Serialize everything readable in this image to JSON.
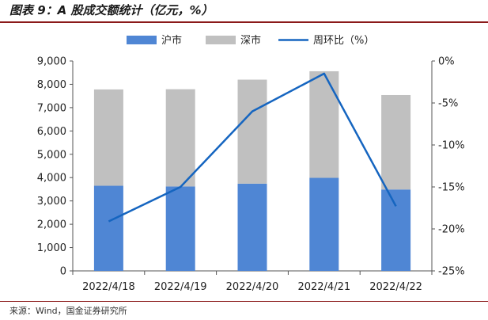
{
  "title": "图表 9：A 股成交额统计（亿元，%）",
  "source": "来源：Wind，国金证券研究所",
  "chart_data": {
    "type": "bar",
    "stacked": true,
    "categories": [
      "2022/4/18",
      "2022/4/19",
      "2022/4/20",
      "2022/4/21",
      "2022/4/22"
    ],
    "series": [
      {
        "name": "沪市",
        "type": "bar",
        "axis": "left",
        "color": "#4f86d4",
        "values": [
          3650,
          3620,
          3740,
          3990,
          3490
        ]
      },
      {
        "name": "深市",
        "type": "bar",
        "axis": "left",
        "color": "#c0c0c0",
        "values": [
          4130,
          4170,
          4460,
          4570,
          4050
        ]
      },
      {
        "name": "周环比（%）",
        "type": "line",
        "axis": "right",
        "color": "#1565c0",
        "values": [
          -19.1,
          -15.0,
          -6.0,
          -1.5,
          -17.3
        ]
      }
    ],
    "y_left": {
      "min": 0,
      "max": 9000,
      "step": 1000,
      "tick_labels": [
        "0",
        "1,000",
        "2,000",
        "3,000",
        "4,000",
        "5,000",
        "6,000",
        "7,000",
        "8,000",
        "9,000"
      ]
    },
    "y_right": {
      "min": -25,
      "max": 0,
      "step": 5,
      "tick_labels": [
        "-25%",
        "-20%",
        "-15%",
        "-10%",
        "-5%",
        "0%"
      ]
    },
    "legend_position": "top-center",
    "grid": false
  }
}
